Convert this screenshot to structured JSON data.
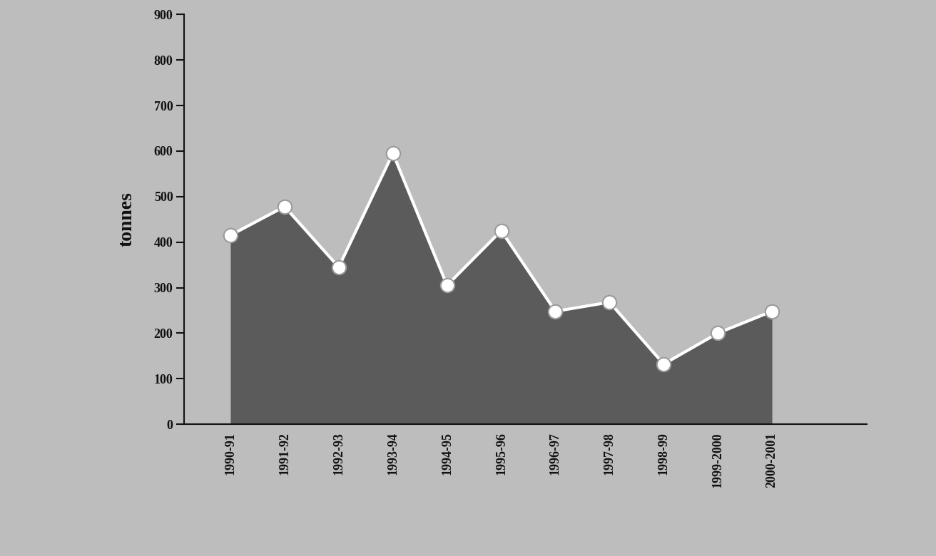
{
  "chart_data": {
    "type": "line",
    "y_label": "tonnes",
    "categories": [
      "1990-91",
      "1991-92",
      "1992-93",
      "1993-94",
      "1994-95",
      "1995-96",
      "1996-97",
      "1997-98",
      "1998-99",
      "1999-2000",
      "2000-2001"
    ],
    "values": [
      415,
      478,
      345,
      595,
      305,
      425,
      248,
      268,
      132,
      200,
      248
    ],
    "color": "#ffffff",
    "marker": "o",
    "line_style": "solid",
    "ylim": [
      0,
      900
    ],
    "yticks": [
      0,
      100,
      200,
      300,
      400,
      500,
      600,
      700,
      800,
      900
    ],
    "grid": false
  }
}
